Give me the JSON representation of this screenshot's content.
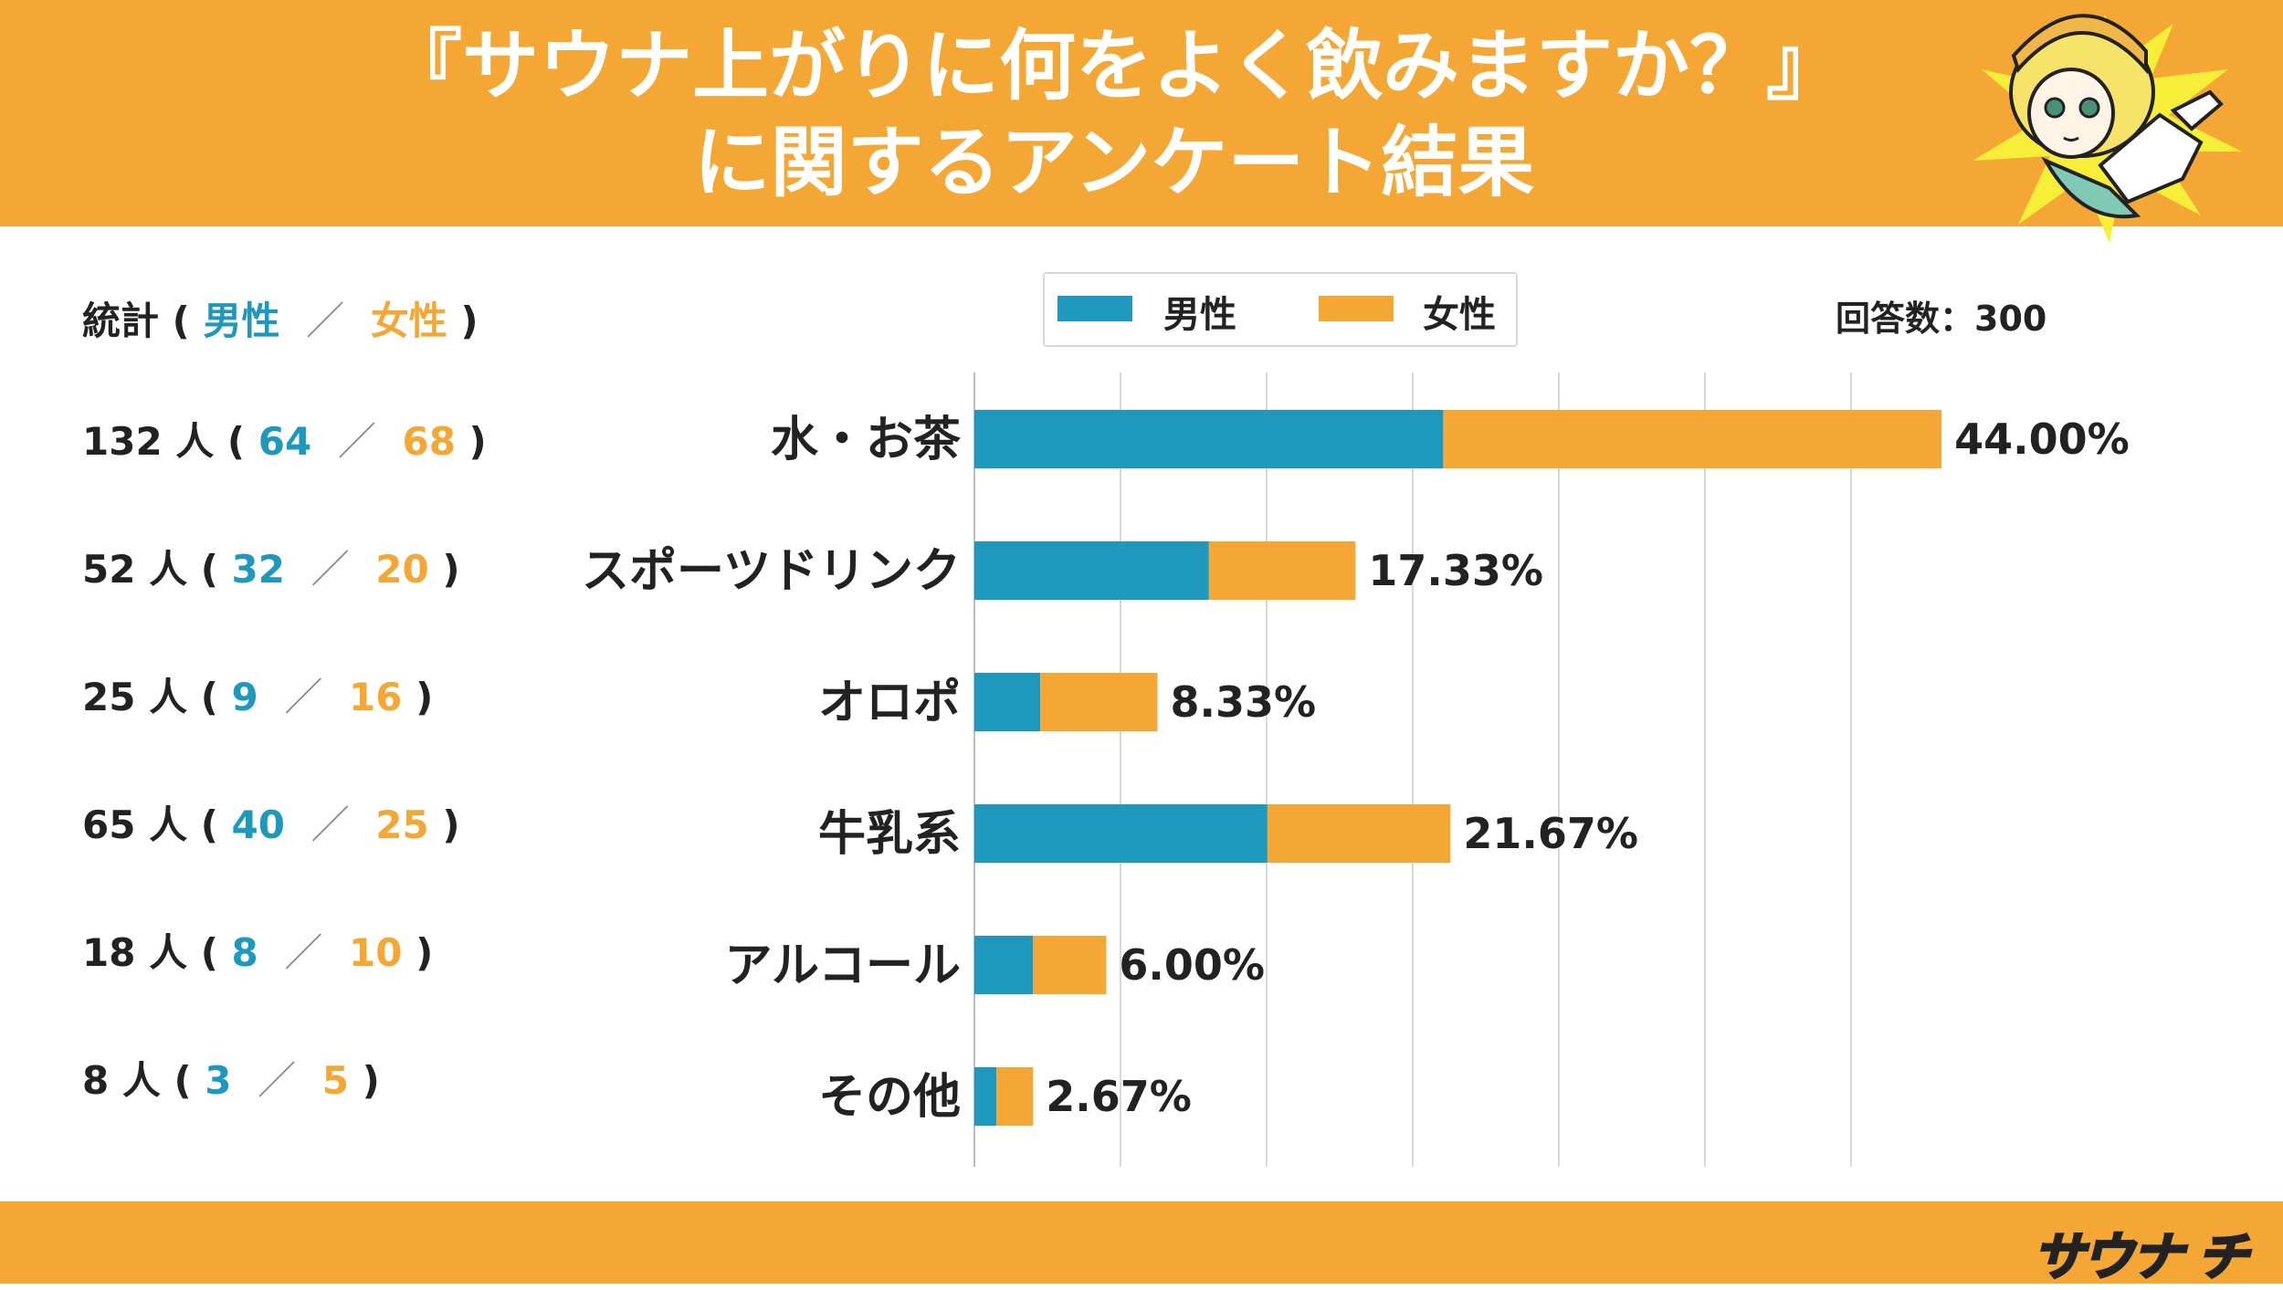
{
  "header": {
    "title_line1": "『サウナ上がりに何をよく飲みますか？』",
    "title_line2": "に関するアンケート結果"
  },
  "respondents": "回答数：300",
  "stats": {
    "header_prefix": "統計 (",
    "header_male": "男性",
    "header_sep": "／",
    "header_female": "女性",
    "header_suffix": ")",
    "rows": [
      {
        "total": "132 人 (",
        "male": "64",
        "female": "68",
        "close": ")"
      },
      {
        "total": "52 人 (",
        "male": "32",
        "female": "20",
        "close": ")"
      },
      {
        "total": "25 人 (",
        "male": "9",
        "female": "16",
        "close": ")"
      },
      {
        "total": "65 人 (",
        "male": "40",
        "female": "25",
        "close": ")"
      },
      {
        "total": "18 人 (",
        "male": "8",
        "female": "10",
        "close": ")"
      },
      {
        "total": "8 人 (",
        "male": "3",
        "female": "5",
        "close": ")"
      }
    ]
  },
  "logo_text": "サウナ チ",
  "chart_data": {
    "type": "bar",
    "orientation": "horizontal",
    "stacked": true,
    "categories": [
      "水・お茶",
      "スポーツドリンク",
      "オロポ",
      "牛乳系",
      "アルコール",
      "その他"
    ],
    "series": [
      {
        "name": "男性",
        "color": "#1f98bd",
        "values": [
          21.33,
          10.67,
          3.0,
          13.33,
          2.67,
          1.0
        ]
      },
      {
        "name": "女性",
        "color": "#f4a734",
        "values": [
          22.67,
          6.67,
          5.33,
          8.33,
          3.33,
          1.67
        ]
      }
    ],
    "totals": [
      44.0,
      17.33,
      8.33,
      21.67,
      6.0,
      2.67
    ],
    "value_labels": [
      "44.00%",
      "17.33%",
      "8.33%",
      "21.67%",
      "6.00%",
      "2.67%"
    ],
    "xlim": [
      0,
      50
    ],
    "grid": true,
    "legend_position": "top"
  }
}
